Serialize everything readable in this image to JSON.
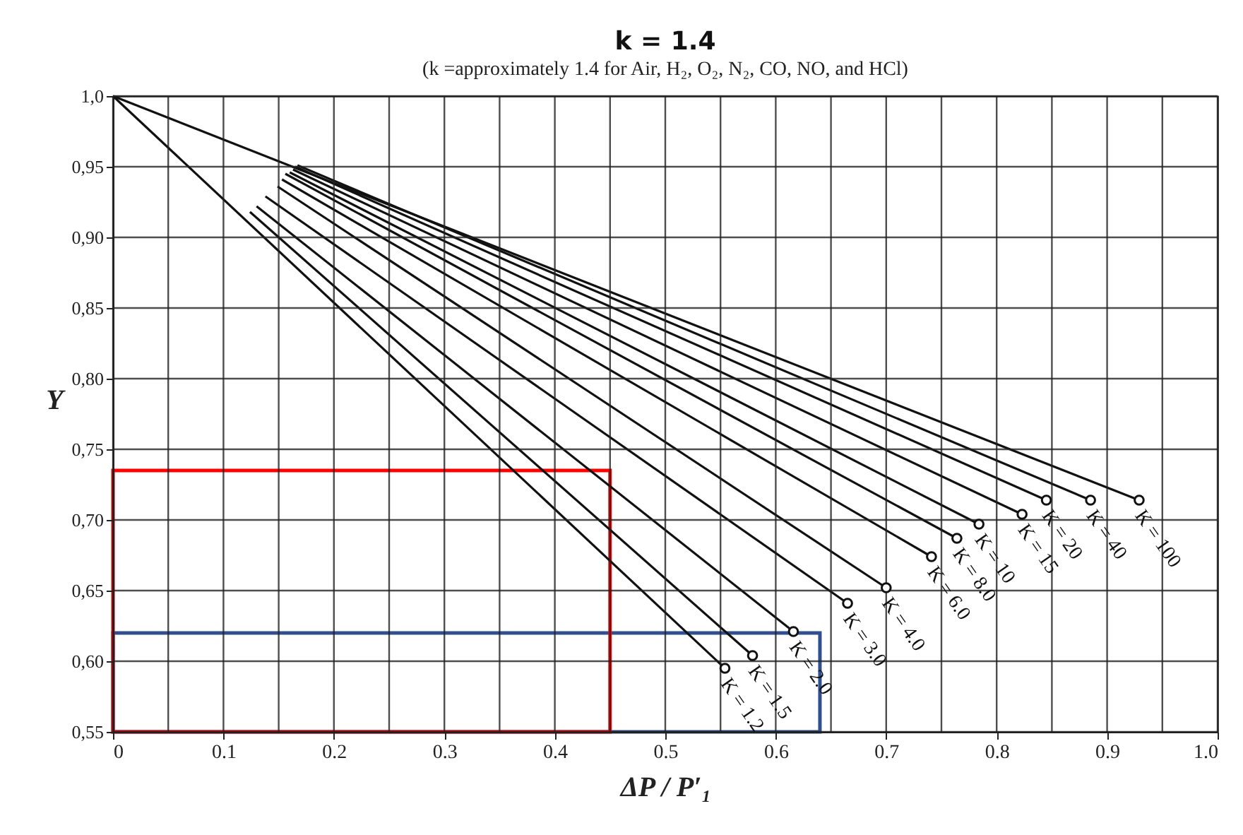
{
  "chart_data": {
    "type": "line",
    "title": "k = 1.4",
    "subtitle": "(k =approximately 1.4 for Air, H₂, O₂, N₂, CO, NO, and HCl)",
    "xlabel": "ΔP / P′₁",
    "ylabel": "Y",
    "xlim": [
      0,
      1.0
    ],
    "ylim": [
      0.55,
      1.0
    ],
    "xticks": [
      0,
      {
        "value": 0.05,
        "label": null
      },
      0.1,
      {
        "value": 0.15,
        "label": null
      },
      0.2,
      {
        "value": 0.25,
        "label": null
      },
      0.3,
      {
        "value": 0.35,
        "label": null
      },
      0.4,
      {
        "value": 0.45,
        "label": null
      },
      0.5,
      {
        "value": 0.55,
        "label": null
      },
      0.6,
      {
        "value": 0.65,
        "label": null
      },
      0.7,
      {
        "value": 0.75,
        "label": null
      },
      0.8,
      {
        "value": 0.85,
        "label": null
      },
      0.9,
      {
        "value": 0.95,
        "label": null
      },
      {
        "value": 1.0,
        "label": "1.0"
      }
    ],
    "yticks": [
      {
        "value": 0.55,
        "label": "0,55"
      },
      {
        "value": 0.6,
        "label": "0,60"
      },
      {
        "value": 0.65,
        "label": "0,65"
      },
      {
        "value": 0.7,
        "label": "0,70"
      },
      {
        "value": 0.75,
        "label": "0,75"
      },
      {
        "value": 0.8,
        "label": "0,80"
      },
      {
        "value": 0.85,
        "label": "0,85"
      },
      {
        "value": 0.9,
        "label": "0,90"
      },
      {
        "value": 0.95,
        "label": "0,95"
      },
      {
        "value": 1.0,
        "label": "1,0"
      }
    ],
    "grid": true,
    "marker": "circle",
    "line_style": "solid",
    "legend": false,
    "series": [
      {
        "name": "K = 1.2",
        "color": "#111111",
        "x": [
          0,
          0.554
        ],
        "values": [
          1.0,
          0.595
        ]
      },
      {
        "name": "K = 1.5",
        "color": "#111111",
        "x": [
          0.124,
          0.579
        ],
        "values": [
          0.918,
          0.604
        ]
      },
      {
        "name": "K = 2.0",
        "color": "#111111",
        "x": [
          0.13,
          0.616
        ],
        "values": [
          0.922,
          0.621
        ]
      },
      {
        "name": "K = 3.0",
        "color": "#111111",
        "x": [
          0.138,
          0.665
        ],
        "values": [
          0.929,
          0.641
        ]
      },
      {
        "name": "K = 4.0",
        "color": "#111111",
        "x": [
          0.149,
          0.7
        ],
        "values": [
          0.936,
          0.652
        ]
      },
      {
        "name": "K = 6.0",
        "color": "#111111",
        "x": [
          0.153,
          0.741
        ],
        "values": [
          0.941,
          0.674
        ]
      },
      {
        "name": "K = 8.0",
        "color": "#111111",
        "x": [
          0.156,
          0.764
        ],
        "values": [
          0.945,
          0.687
        ]
      },
      {
        "name": "K = 10",
        "color": "#111111",
        "x": [
          0.16,
          0.784
        ],
        "values": [
          0.946,
          0.697
        ]
      },
      {
        "name": "K = 15",
        "color": "#111111",
        "x": [
          0.163,
          0.823
        ],
        "values": [
          0.948,
          0.704
        ]
      },
      {
        "name": "K = 20",
        "color": "#111111",
        "x": [
          0.165,
          0.845
        ],
        "values": [
          0.95,
          0.714
        ]
      },
      {
        "name": "K = 40",
        "color": "#111111",
        "x": [
          0.167,
          0.885
        ],
        "values": [
          0.951,
          0.714
        ]
      },
      {
        "name": "K = 100",
        "color": "#111111",
        "x": [
          0,
          0.929
        ],
        "values": [
          1.0,
          0.714
        ]
      }
    ]
  }
}
